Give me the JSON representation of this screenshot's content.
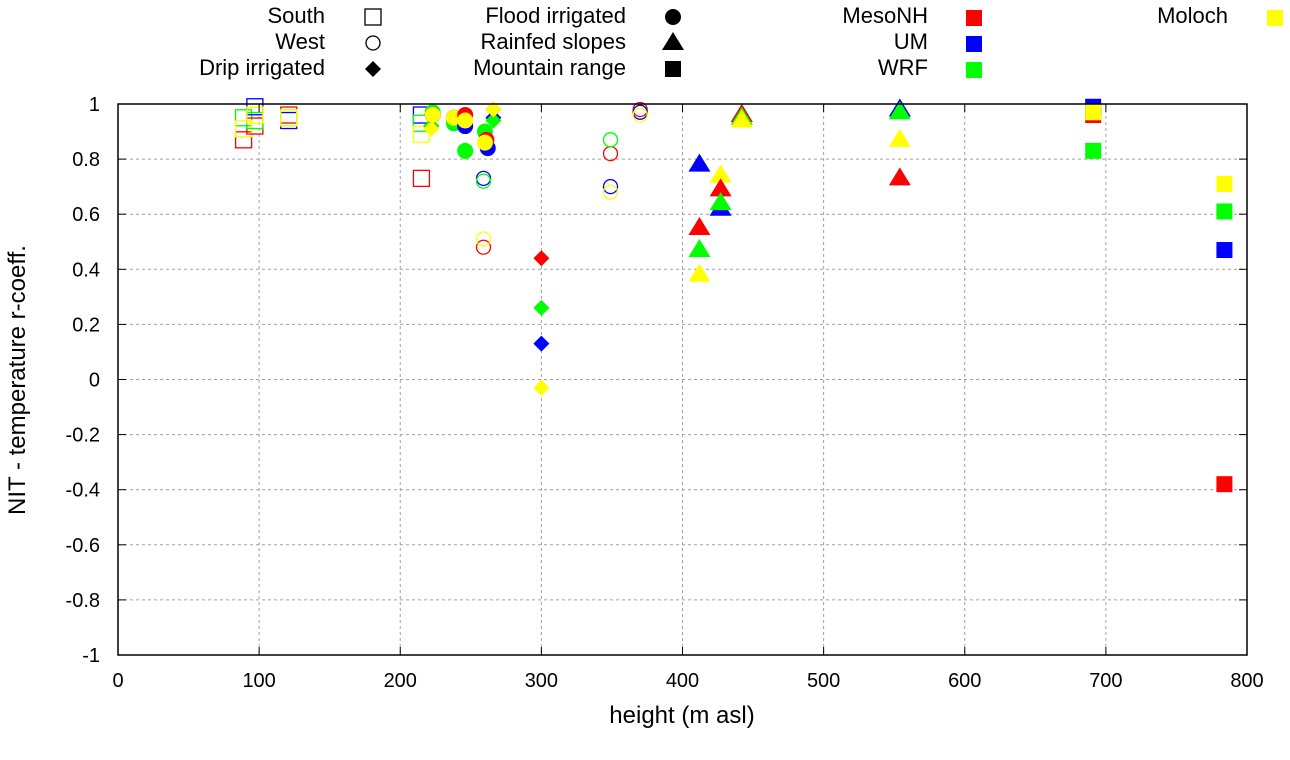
{
  "chart_data": {
    "type": "scatter",
    "title": "",
    "xlabel": "height (m asl)",
    "ylabel": "NIT - temperature r-coeff.",
    "xlim": [
      0,
      800
    ],
    "ylim": [
      -1,
      1
    ],
    "xticks": [
      0,
      100,
      200,
      300,
      400,
      500,
      600,
      700,
      800
    ],
    "xtick_labels": [
      "0",
      "100",
      "200",
      "300",
      "400",
      "500",
      "600",
      "700",
      "800"
    ],
    "yticks": [
      1,
      0.8,
      0.6,
      0.4,
      0.2,
      0,
      -0.2,
      -0.4,
      -0.6,
      -0.8,
      -1
    ],
    "ytick_labels": [
      "1",
      "0.8",
      "0.6",
      "0.4",
      "0.2",
      "0",
      "-0.2",
      "-0.4",
      "-0.6",
      "-0.8",
      "-1"
    ],
    "grid": true,
    "legend": {
      "placement": "top",
      "shape_entries": [
        {
          "label": "South",
          "marker": "open-square"
        },
        {
          "label": "West",
          "marker": "open-circle"
        },
        {
          "label": "Drip irrigated",
          "marker": "filled-diamond"
        },
        {
          "label": "Flood irrigated",
          "marker": "filled-circle"
        },
        {
          "label": "Rainfed slopes",
          "marker": "filled-triangle"
        },
        {
          "label": "Mountain range",
          "marker": "filled-square"
        }
      ],
      "color_entries": [
        {
          "label": "MesoNH",
          "color": "#ff0000"
        },
        {
          "label": "UM",
          "color": "#0000ff"
        },
        {
          "label": "WRF",
          "color": "#00ff00"
        },
        {
          "label": "Moloch",
          "color": "#ffff00"
        }
      ]
    },
    "models": [
      "MesoNH",
      "UM",
      "WRF",
      "Moloch"
    ],
    "colors": {
      "MesoNH": "#ff0000",
      "UM": "#0000ff",
      "WRF": "#00ff00",
      "Moloch": "#ffff00"
    },
    "series": [
      {
        "name": "South",
        "marker": "open-square",
        "points": [
          {
            "model": "MesoNH",
            "x": 89,
            "y": 0.87
          },
          {
            "model": "WRF",
            "x": 89,
            "y": 0.95
          },
          {
            "model": "Moloch",
            "x": 89,
            "y": 0.91
          },
          {
            "model": "MesoNH",
            "x": 97,
            "y": 0.92
          },
          {
            "model": "UM",
            "x": 97,
            "y": 0.99
          },
          {
            "model": "WRF",
            "x": 97,
            "y": 0.94
          },
          {
            "model": "Moloch",
            "x": 97,
            "y": 0.96
          },
          {
            "model": "MesoNH",
            "x": 121,
            "y": 0.96
          },
          {
            "model": "UM",
            "x": 121,
            "y": 0.94
          },
          {
            "model": "WRF",
            "x": 121,
            "y": 0.95
          },
          {
            "model": "Moloch",
            "x": 121,
            "y": 0.95
          },
          {
            "model": "MesoNH",
            "x": 215,
            "y": 0.73
          },
          {
            "model": "UM",
            "x": 215,
            "y": 0.96
          },
          {
            "model": "WRF",
            "x": 215,
            "y": 0.93
          },
          {
            "model": "Moloch",
            "x": 215,
            "y": 0.89
          }
        ]
      },
      {
        "name": "West",
        "marker": "open-circle",
        "points": [
          {
            "model": "UM",
            "x": 259,
            "y": 0.73
          },
          {
            "model": "WRF",
            "x": 259,
            "y": 0.72
          },
          {
            "model": "MesoNH",
            "x": 259,
            "y": 0.48
          },
          {
            "model": "Moloch",
            "x": 259,
            "y": 0.51
          },
          {
            "model": "MesoNH",
            "x": 349,
            "y": 0.82
          },
          {
            "model": "WRF",
            "x": 349,
            "y": 0.87
          },
          {
            "model": "UM",
            "x": 349,
            "y": 0.7
          },
          {
            "model": "Moloch",
            "x": 349,
            "y": 0.68
          },
          {
            "model": "MesoNH",
            "x": 370,
            "y": 0.98
          },
          {
            "model": "WRF",
            "x": 370,
            "y": 0.97
          },
          {
            "model": "UM",
            "x": 370,
            "y": 0.97
          },
          {
            "model": "Moloch",
            "x": 370,
            "y": 0.96
          }
        ]
      },
      {
        "name": "Drip irrigated",
        "marker": "filled-diamond",
        "points": [
          {
            "model": "MesoNH",
            "x": 300,
            "y": 0.44
          },
          {
            "model": "WRF",
            "x": 300,
            "y": 0.26
          },
          {
            "model": "UM",
            "x": 300,
            "y": 0.13
          },
          {
            "model": "Moloch",
            "x": 300,
            "y": -0.03
          },
          {
            "model": "MesoNH",
            "x": 222,
            "y": 0.92
          },
          {
            "model": "UM",
            "x": 222,
            "y": 0.92
          },
          {
            "model": "WRF",
            "x": 222,
            "y": 0.92
          },
          {
            "model": "Moloch",
            "x": 222,
            "y": 0.91
          },
          {
            "model": "UM",
            "x": 266,
            "y": 0.95
          },
          {
            "model": "WRF",
            "x": 266,
            "y": 0.94
          },
          {
            "model": "MesoNH",
            "x": 266,
            "y": 0.98
          },
          {
            "model": "Moloch",
            "x": 266,
            "y": 0.98
          }
        ]
      },
      {
        "name": "Flood irrigated",
        "marker": "filled-circle",
        "points": [
          {
            "model": "WRF",
            "x": 223,
            "y": 0.97
          },
          {
            "model": "MesoNH",
            "x": 223,
            "y": 0.96
          },
          {
            "model": "UM",
            "x": 223,
            "y": 0.96
          },
          {
            "model": "Moloch",
            "x": 223,
            "y": 0.96
          },
          {
            "model": "UM",
            "x": 238,
            "y": 0.95
          },
          {
            "model": "WRF",
            "x": 238,
            "y": 0.93
          },
          {
            "model": "MesoNH",
            "x": 238,
            "y": 0.95
          },
          {
            "model": "Moloch",
            "x": 238,
            "y": 0.95
          },
          {
            "model": "MesoNH",
            "x": 246,
            "y": 0.96
          },
          {
            "model": "UM",
            "x": 246,
            "y": 0.92
          },
          {
            "model": "Moloch",
            "x": 246,
            "y": 0.94
          },
          {
            "model": "WRF",
            "x": 246,
            "y": 0.83
          },
          {
            "model": "WRF",
            "x": 260,
            "y": 0.9
          },
          {
            "model": "UM",
            "x": 262,
            "y": 0.84
          },
          {
            "model": "MesoNH",
            "x": 261,
            "y": 0.87
          },
          {
            "model": "Moloch",
            "x": 260,
            "y": 0.86
          }
        ]
      },
      {
        "name": "Rainfed slopes",
        "marker": "filled-triangle",
        "points": [
          {
            "model": "UM",
            "x": 412,
            "y": 0.78
          },
          {
            "model": "Moloch",
            "x": 427,
            "y": 0.74
          },
          {
            "model": "MesoNH",
            "x": 427,
            "y": 0.69
          },
          {
            "model": "UM",
            "x": 427,
            "y": 0.62
          },
          {
            "model": "WRF",
            "x": 427,
            "y": 0.64
          },
          {
            "model": "MesoNH",
            "x": 412,
            "y": 0.55
          },
          {
            "model": "WRF",
            "x": 412,
            "y": 0.47
          },
          {
            "model": "Moloch",
            "x": 412,
            "y": 0.38
          },
          {
            "model": "UM",
            "x": 442,
            "y": 0.96
          },
          {
            "model": "MesoNH",
            "x": 442,
            "y": 0.96
          },
          {
            "model": "WRF",
            "x": 442,
            "y": 0.95
          },
          {
            "model": "Moloch",
            "x": 442,
            "y": 0.94
          },
          {
            "model": "UM",
            "x": 554,
            "y": 0.98
          },
          {
            "model": "WRF",
            "x": 554,
            "y": 0.97
          },
          {
            "model": "Moloch",
            "x": 554,
            "y": 0.87
          },
          {
            "model": "MesoNH",
            "x": 554,
            "y": 0.73
          }
        ]
      },
      {
        "name": "Mountain range",
        "marker": "filled-square",
        "points": [
          {
            "model": "UM",
            "x": 691,
            "y": 0.99
          },
          {
            "model": "MesoNH",
            "x": 691,
            "y": 0.96
          },
          {
            "model": "Moloch",
            "x": 691,
            "y": 0.97
          },
          {
            "model": "WRF",
            "x": 691,
            "y": 0.83
          },
          {
            "model": "Moloch",
            "x": 784,
            "y": 0.71
          },
          {
            "model": "WRF",
            "x": 784,
            "y": 0.61
          },
          {
            "model": "UM",
            "x": 784,
            "y": 0.47
          },
          {
            "model": "MesoNH",
            "x": 784,
            "y": -0.38
          }
        ]
      }
    ]
  }
}
